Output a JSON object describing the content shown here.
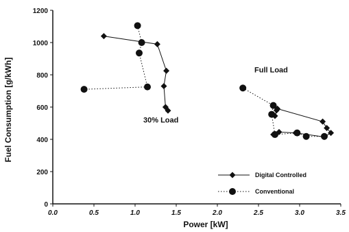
{
  "chart_data": {
    "type": "scatter",
    "title": "",
    "xlabel": "Power [kW]",
    "ylabel": "Fuel Consumption [g/kWh]",
    "xlim": [
      0.0,
      3.5
    ],
    "ylim": [
      0,
      1200
    ],
    "x_ticks": [
      "0.0",
      "0.5",
      "1.0",
      "1.5",
      "2.0",
      "2.5",
      "3.0",
      "3.5"
    ],
    "y_ticks": [
      "0",
      "200",
      "400",
      "600",
      "800",
      "1000",
      "1200"
    ],
    "grid": false,
    "legend_position": "bottom-right",
    "annotations": [
      {
        "text": "30% Load",
        "x": 1.1,
        "y": 505
      },
      {
        "text": "Full Load",
        "x": 2.45,
        "y": 815
      }
    ],
    "series": [
      {
        "name": "Digital Controlled",
        "marker": "diamond",
        "line": "solid",
        "color": "#111111",
        "segments": [
          [
            [
              0.62,
              1040
            ],
            [
              1.27,
              990
            ],
            [
              1.38,
              825
            ],
            [
              1.35,
              730
            ],
            [
              1.37,
              600
            ],
            [
              1.4,
              578
            ]
          ],
          [
            [
              2.72,
              580
            ],
            [
              2.7,
              545
            ],
            [
              2.73,
              590
            ],
            [
              3.28,
              510
            ],
            [
              3.33,
              470
            ],
            [
              3.38,
              440
            ],
            [
              3.3,
              415
            ],
            [
              2.95,
              440
            ],
            [
              2.75,
              445
            ],
            [
              2.68,
              430
            ]
          ]
        ]
      },
      {
        "name": "Conventional",
        "marker": "circle",
        "line": "dotted",
        "color": "#111111",
        "segments": [
          [
            [
              1.03,
              1105
            ],
            [
              1.08,
              1000
            ],
            [
              1.05,
              935
            ],
            [
              1.15,
              725
            ],
            [
              0.38,
              710
            ]
          ],
          [
            [
              2.31,
              718
            ],
            [
              2.68,
              610
            ],
            [
              2.66,
              555
            ],
            [
              2.7,
              430
            ],
            [
              2.97,
              440
            ],
            [
              3.08,
              418
            ],
            [
              3.3,
              418
            ]
          ]
        ]
      }
    ]
  }
}
